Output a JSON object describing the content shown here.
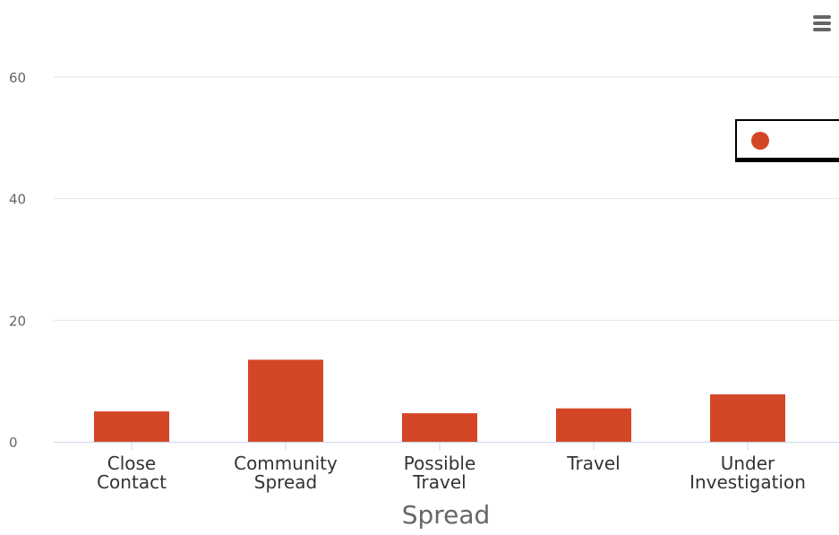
{
  "chart_data": {
    "type": "bar",
    "title": "",
    "xlabel": "Spread",
    "ylabel": "",
    "categories": [
      [
        "Close",
        "Contact"
      ],
      [
        "Community",
        "Spread"
      ],
      [
        "Possible",
        "Travel"
      ],
      [
        "Travel"
      ],
      [
        "Under",
        "Investigation"
      ]
    ],
    "series": [
      {
        "name": "",
        "color": "#d44726",
        "values": [
          5,
          13.5,
          4.7,
          5.5,
          7.8
        ]
      }
    ],
    "ylim": [
      0,
      60
    ],
    "yticks": [
      0,
      20,
      40,
      60
    ],
    "grid": true,
    "legend": "top-right"
  },
  "colors": {
    "bar": "#d44726",
    "grid": "#e6e6e6",
    "axis": "#ccd6eb",
    "tick_text": "#666666",
    "category_text": "#333333",
    "axis_title": "#666666",
    "menu_icon": "#666666"
  },
  "menu": {
    "icon": "hamburger-menu-icon"
  }
}
